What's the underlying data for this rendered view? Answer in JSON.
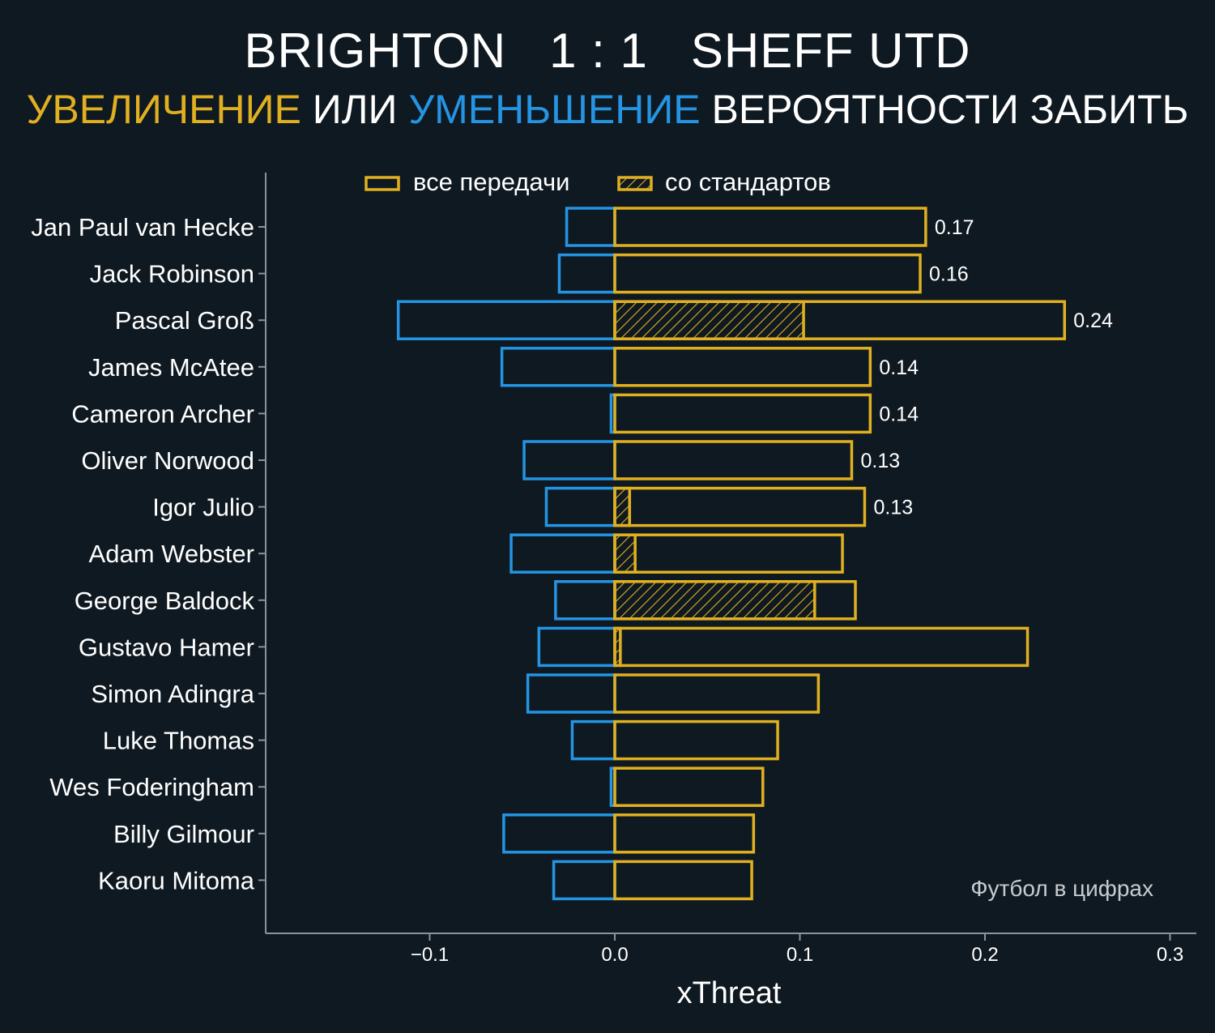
{
  "header": {
    "title": "BRIGHTON   1 : 1   SHEFF UTD",
    "subtitle_parts": [
      {
        "text": "УВЕЛИЧЕНИЕ",
        "color": "#e0b021"
      },
      {
        "text": " ИЛИ ",
        "color": "#ffffff"
      },
      {
        "text": "УМЕНЬШЕНИЕ",
        "color": "#2494e3"
      },
      {
        "text": " ВЕРОЯТНОСТИ ЗАБИТЬ",
        "color": "#ffffff"
      }
    ]
  },
  "watermark": "Футбол в цифрах",
  "colors": {
    "background": "#0f1921",
    "increase": "#e0b021",
    "decrease": "#2494e3",
    "axis": "#8a949c",
    "text": "#ffffff",
    "watermark": "#c7ccd0"
  },
  "chart_data": {
    "type": "bar",
    "orientation": "horizontal",
    "xlabel": "xThreat",
    "ylabel": "",
    "xlim": [
      -0.19,
      0.315
    ],
    "xticks": [
      -0.1,
      0.0,
      0.1,
      0.2,
      0.3
    ],
    "xtick_labels": [
      "−0.1",
      "0.0",
      "0.1",
      "0.2",
      "0.3"
    ],
    "grid": false,
    "legend": {
      "placement": "top",
      "entries": [
        {
          "label": "все передачи",
          "style": "outline"
        },
        {
          "label": "со стандартов",
          "style": "hatched"
        }
      ]
    },
    "categories": [
      "Jan Paul van Hecke",
      "Jack Robinson",
      "Pascal Groß",
      "James McAtee",
      "Cameron Archer",
      "Oliver Norwood",
      "Igor Julio",
      "Adam Webster",
      "George Baldock",
      "Gustavo Hamer",
      "Simon Adingra",
      "Luke Thomas",
      "Wes Foderingham",
      "Billy Gilmour",
      "Kaoru Mitoma"
    ],
    "series": [
      {
        "name": "все передачи",
        "role": "positive",
        "values": [
          0.168,
          0.165,
          0.243,
          0.138,
          0.138,
          0.128,
          0.135,
          0.123,
          0.13,
          0.223,
          0.11,
          0.088,
          0.08,
          0.075,
          0.074
        ]
      },
      {
        "name": "со стандартов",
        "role": "positive-set-pieces",
        "values": [
          0,
          0,
          0.102,
          0,
          0,
          0,
          0.008,
          0.011,
          0.108,
          0.003,
          0,
          0,
          0,
          0,
          0
        ]
      },
      {
        "role": "negative",
        "values": [
          -0.026,
          -0.03,
          -0.117,
          -0.061,
          -0.002,
          -0.049,
          -0.037,
          -0.056,
          -0.032,
          -0.041,
          -0.047,
          -0.023,
          -0.002,
          -0.06,
          -0.033
        ]
      }
    ],
    "data_labels": [
      "0.17",
      "0.16",
      "0.24",
      "0.14",
      "0.14",
      "0.13",
      "0.13",
      "",
      "",
      "",
      "",
      "",
      "",
      "",
      ""
    ]
  }
}
